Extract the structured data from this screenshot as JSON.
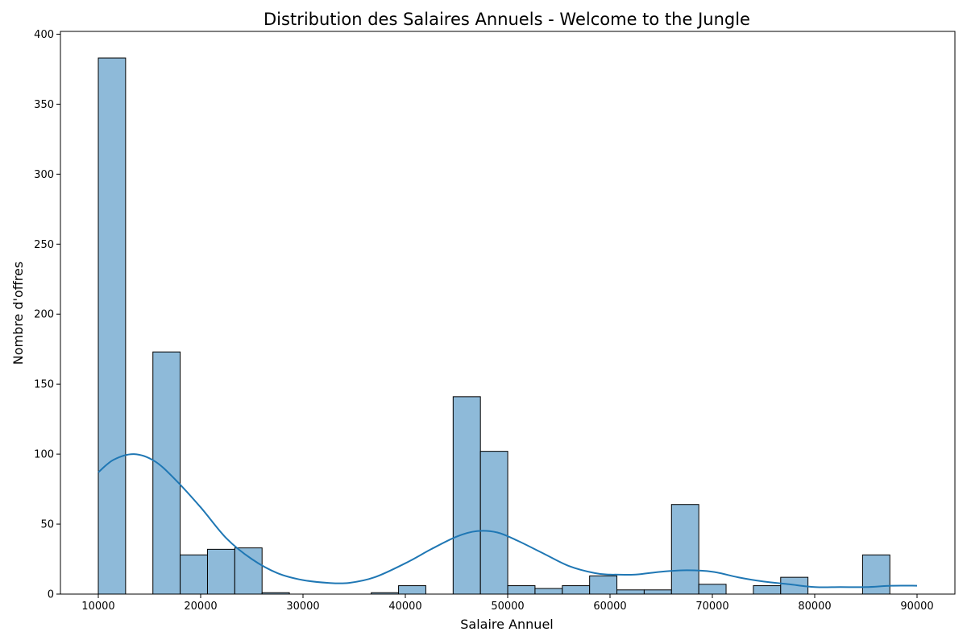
{
  "chart_data": {
    "type": "bar",
    "title": "Distribution des Salaires Annuels - Welcome to the Jungle",
    "xlabel": "Salaire Annuel",
    "ylabel": "Nombre d'offres",
    "xlim": [
      6300,
      93700
    ],
    "ylim": [
      0,
      402
    ],
    "x_ticks": [
      10000,
      20000,
      30000,
      40000,
      50000,
      60000,
      70000,
      80000,
      90000
    ],
    "y_ticks": [
      0,
      50,
      100,
      150,
      200,
      250,
      300,
      350,
      400
    ],
    "bins": {
      "start": 10000,
      "width": 2667,
      "counts": [
        383,
        0,
        173,
        28,
        32,
        33,
        1,
        0,
        0,
        0,
        1,
        6,
        0,
        141,
        102,
        6,
        4,
        6,
        13,
        3,
        3,
        64,
        7,
        0,
        6,
        12,
        0,
        0,
        28,
        0
      ]
    },
    "kde": {
      "x": [
        10000,
        11500,
        13500,
        15500,
        17500,
        20000,
        22500,
        25000,
        27500,
        30000,
        32500,
        34500,
        37000,
        40000,
        42500,
        45000,
        47000,
        49000,
        51000,
        53500,
        56000,
        58500,
        60000,
        62500,
        65000,
        67500,
        70000,
        72500,
        75000,
        77500,
        80000,
        82500,
        85000,
        87500,
        90000
      ],
      "y": [
        87,
        96,
        100,
        95,
        82,
        62,
        40,
        25,
        15,
        10,
        8,
        8,
        12,
        22,
        32,
        41,
        45,
        44,
        38,
        29,
        20,
        15,
        14,
        14,
        16,
        17,
        16,
        12,
        9,
        7,
        5,
        5,
        5,
        6,
        6
      ]
    },
    "grid": false,
    "colors": {
      "bar_fill": "#8ebad9",
      "bar_edge": "#000000",
      "kde_line": "#1f77b4"
    }
  }
}
